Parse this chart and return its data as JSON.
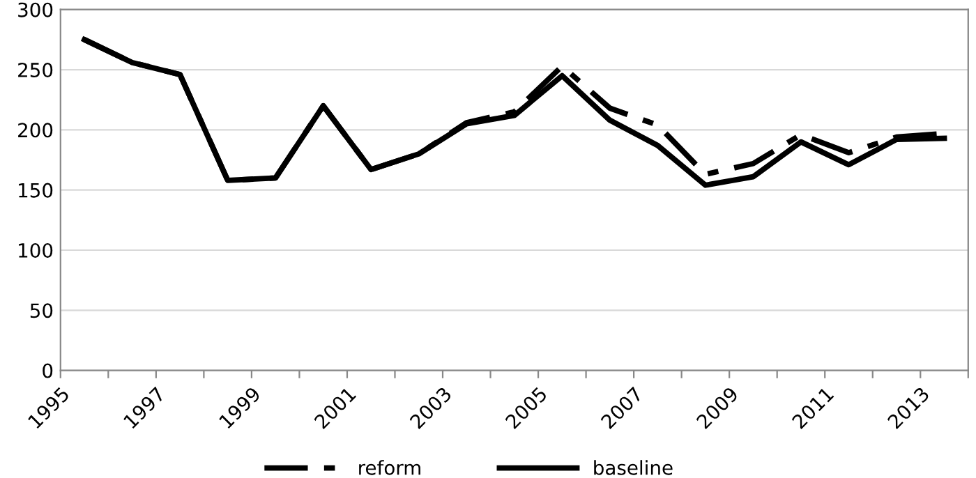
{
  "chart_data": {
    "type": "line",
    "x": [
      1995.5,
      1996.5,
      1997.5,
      1998.5,
      1999.5,
      2000.5,
      2001.5,
      2002.5,
      2003.5,
      2004.5,
      2005.5,
      2006.5,
      2007.5,
      2008.5,
      2009.5,
      2010.5,
      2011.5,
      2012.5,
      2013.5
    ],
    "series": [
      {
        "name": "reform",
        "color": "#000000",
        "line_style": "dashed",
        "values": [
          275,
          256,
          246,
          158,
          160,
          220,
          167,
          180,
          206,
          215,
          253,
          218,
          204,
          163,
          172,
          196,
          181,
          194,
          197
        ]
      },
      {
        "name": "baseline",
        "color": "#000000",
        "line_style": "solid",
        "values": [
          275,
          256,
          246,
          158,
          160,
          220,
          167,
          180,
          205,
          212,
          245,
          208,
          187,
          154,
          161,
          190,
          171,
          192,
          193
        ]
      }
    ],
    "xlim": [
      1995,
      2014
    ],
    "xticks": [
      1995,
      {
        "value": 1996,
        "label": null
      },
      1997,
      {
        "value": 1998,
        "label": null
      },
      1999,
      {
        "value": 2000,
        "label": null
      },
      2001,
      {
        "value": 2002,
        "label": null
      },
      2003,
      {
        "value": 2004,
        "label": null
      },
      2005,
      {
        "value": 2006,
        "label": null
      },
      2007,
      {
        "value": 2008,
        "label": null
      },
      2009,
      {
        "value": 2010,
        "label": null
      },
      2011,
      {
        "value": 2012,
        "label": null
      },
      2013,
      {
        "value": 2014,
        "label": null
      }
    ],
    "ylim": [
      0,
      300
    ],
    "yticks": [
      0,
      50,
      100,
      150,
      200,
      250,
      300
    ],
    "grid": "y",
    "legend": "bottom",
    "marker": "none"
  }
}
